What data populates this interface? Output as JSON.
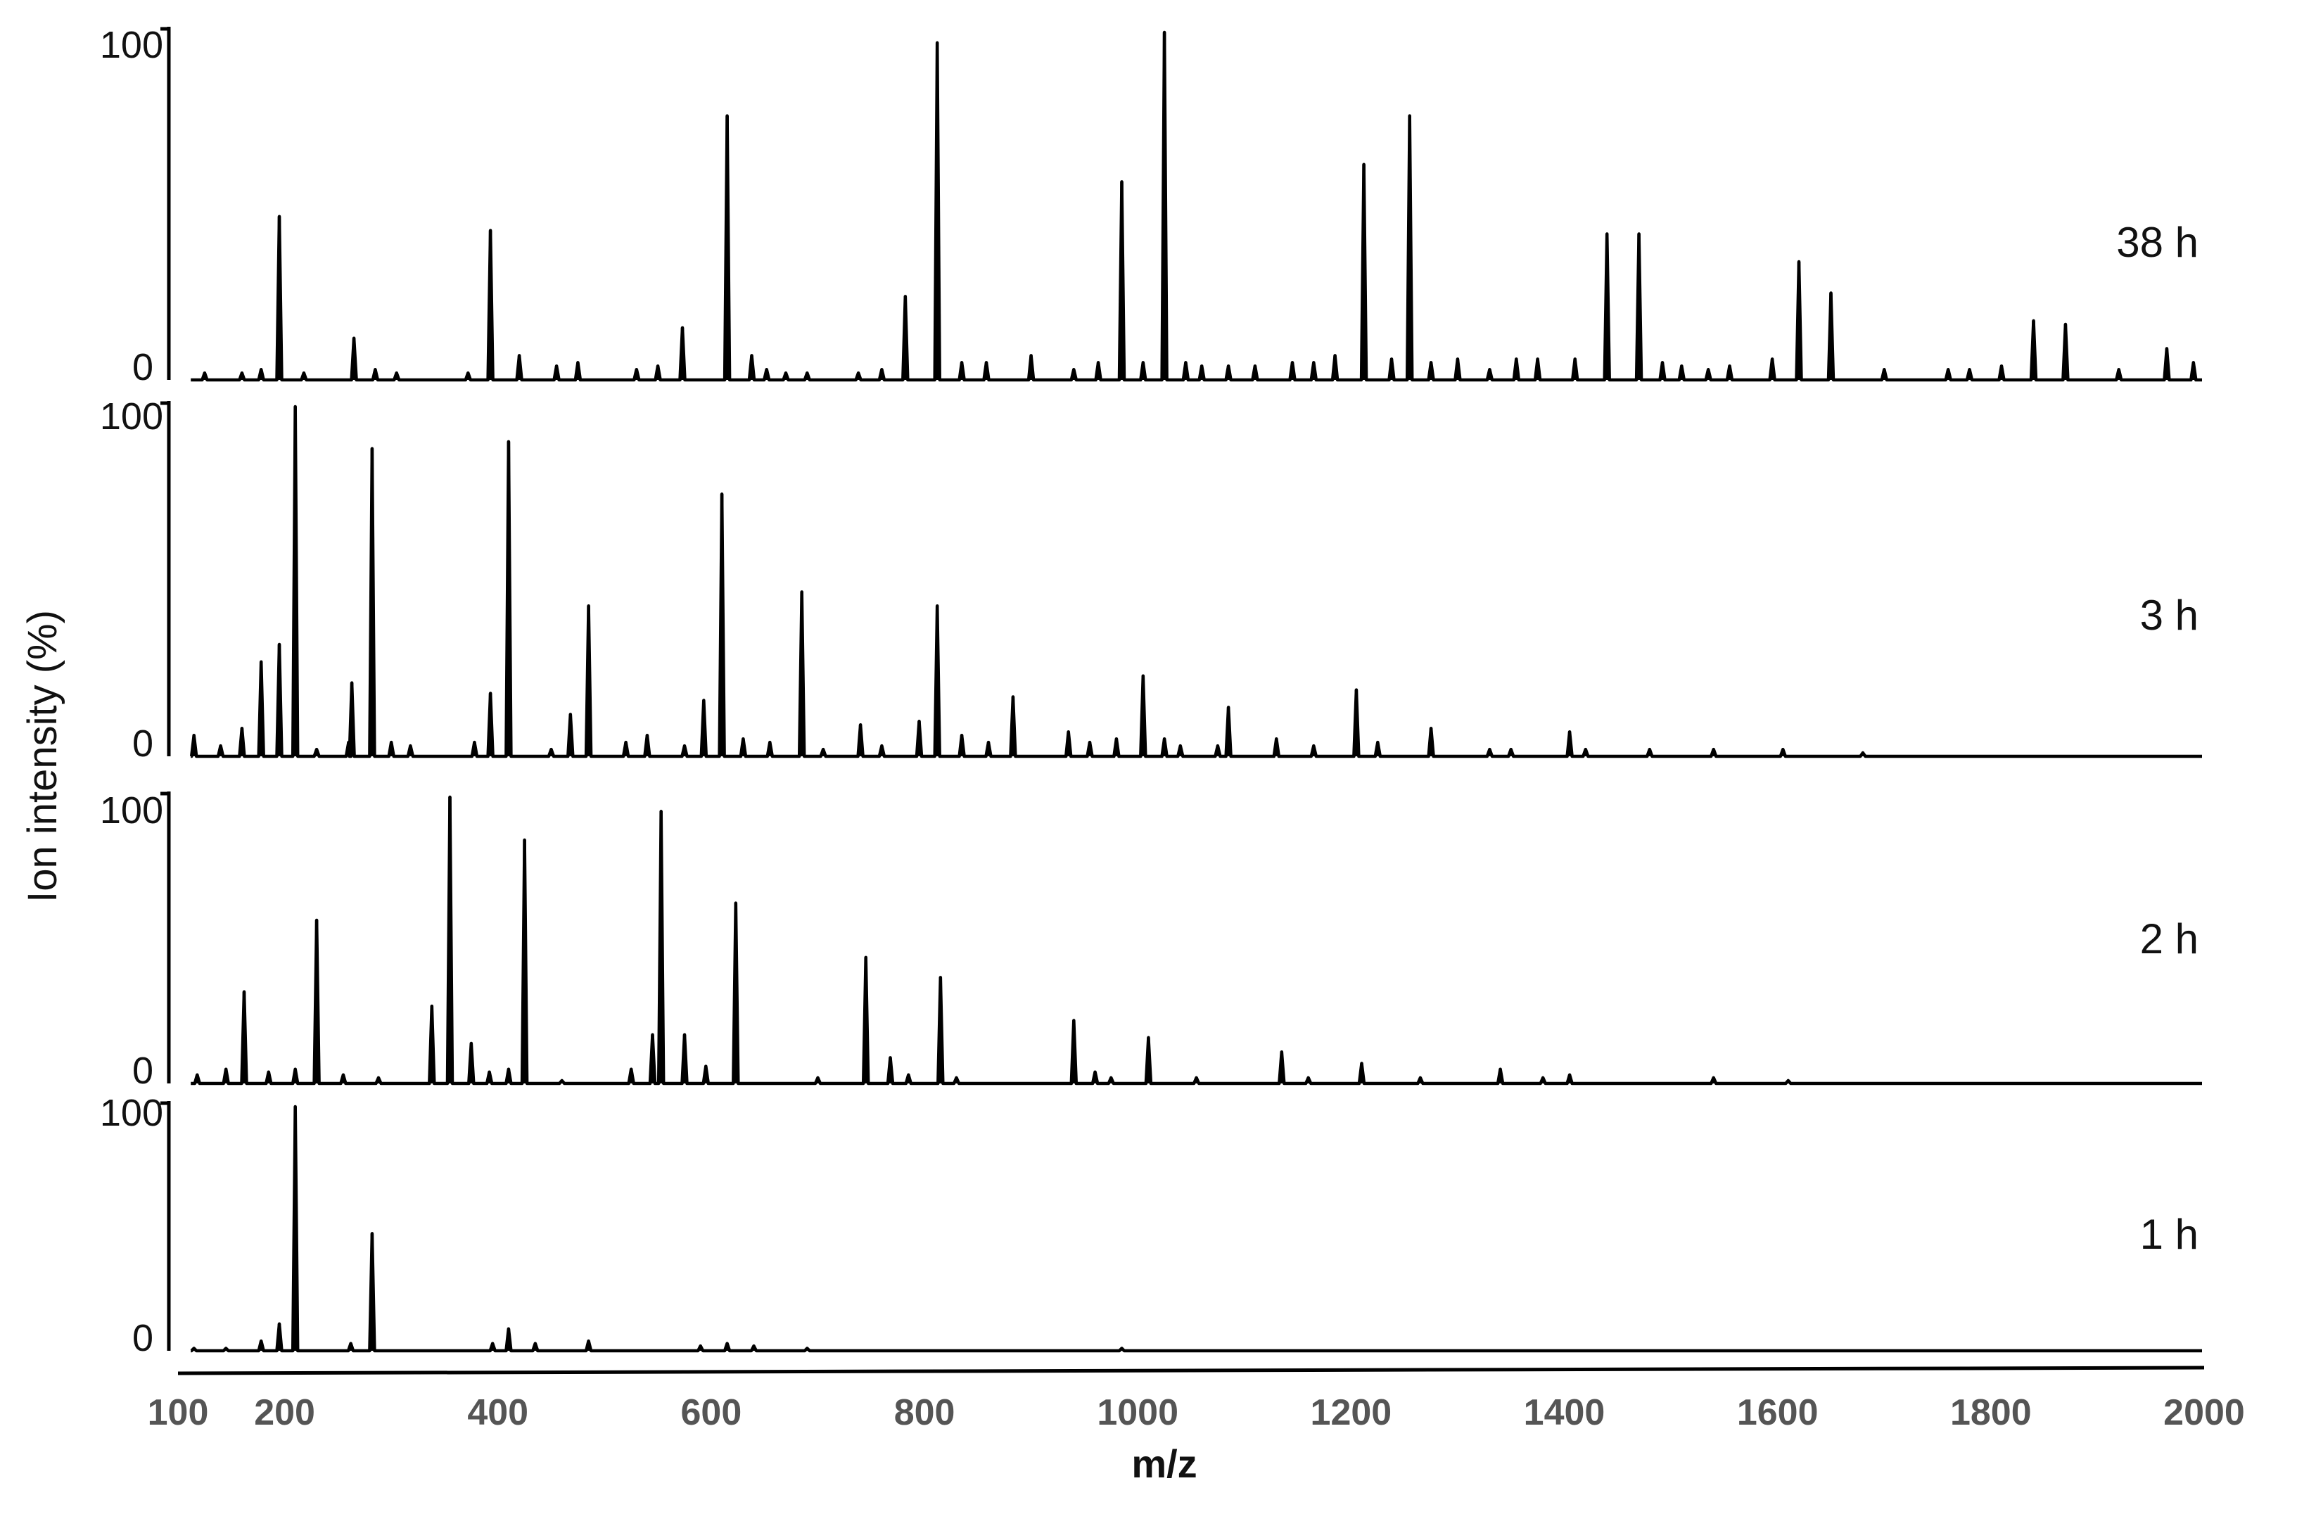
{
  "chart_data": {
    "type": "line",
    "subtype": "stacked mass spectra",
    "xlabel": "m/z",
    "ylabel": "Ion intensity (%)",
    "xlim": [
      100,
      2000
    ],
    "ylim": [
      0,
      100
    ],
    "xticks": [
      100,
      200,
      400,
      600,
      800,
      1000,
      1200,
      1400,
      1600,
      1800,
      2000
    ],
    "yticks": [
      0,
      100
    ],
    "line_color": "#000000",
    "panels": [
      {
        "label": "38 h",
        "peaks": [
          {
            "x": 125,
            "y": 2
          },
          {
            "x": 160,
            "y": 2
          },
          {
            "x": 178,
            "y": 3
          },
          {
            "x": 195,
            "y": 47
          },
          {
            "x": 218,
            "y": 2
          },
          {
            "x": 265,
            "y": 12
          },
          {
            "x": 285,
            "y": 3
          },
          {
            "x": 305,
            "y": 2
          },
          {
            "x": 372,
            "y": 2
          },
          {
            "x": 393,
            "y": 43
          },
          {
            "x": 420,
            "y": 7
          },
          {
            "x": 455,
            "y": 4
          },
          {
            "x": 475,
            "y": 5
          },
          {
            "x": 530,
            "y": 3
          },
          {
            "x": 550,
            "y": 4
          },
          {
            "x": 573,
            "y": 15
          },
          {
            "x": 615,
            "y": 76
          },
          {
            "x": 638,
            "y": 7
          },
          {
            "x": 652,
            "y": 3
          },
          {
            "x": 670,
            "y": 2
          },
          {
            "x": 690,
            "y": 2
          },
          {
            "x": 738,
            "y": 2
          },
          {
            "x": 760,
            "y": 3
          },
          {
            "x": 782,
            "y": 24
          },
          {
            "x": 812,
            "y": 97
          },
          {
            "x": 835,
            "y": 5
          },
          {
            "x": 858,
            "y": 5
          },
          {
            "x": 900,
            "y": 7
          },
          {
            "x": 940,
            "y": 3
          },
          {
            "x": 963,
            "y": 5
          },
          {
            "x": 985,
            "y": 57
          },
          {
            "x": 1005,
            "y": 5
          },
          {
            "x": 1025,
            "y": 100
          },
          {
            "x": 1045,
            "y": 5
          },
          {
            "x": 1060,
            "y": 4
          },
          {
            "x": 1085,
            "y": 4
          },
          {
            "x": 1110,
            "y": 4
          },
          {
            "x": 1145,
            "y": 5
          },
          {
            "x": 1165,
            "y": 5
          },
          {
            "x": 1185,
            "y": 7
          },
          {
            "x": 1212,
            "y": 62
          },
          {
            "x": 1238,
            "y": 6
          },
          {
            "x": 1255,
            "y": 76
          },
          {
            "x": 1275,
            "y": 5
          },
          {
            "x": 1300,
            "y": 6
          },
          {
            "x": 1330,
            "y": 3
          },
          {
            "x": 1355,
            "y": 6
          },
          {
            "x": 1375,
            "y": 6
          },
          {
            "x": 1410,
            "y": 6
          },
          {
            "x": 1440,
            "y": 42
          },
          {
            "x": 1470,
            "y": 42
          },
          {
            "x": 1492,
            "y": 5
          },
          {
            "x": 1510,
            "y": 4
          },
          {
            "x": 1535,
            "y": 3
          },
          {
            "x": 1555,
            "y": 4
          },
          {
            "x": 1595,
            "y": 6
          },
          {
            "x": 1620,
            "y": 34
          },
          {
            "x": 1650,
            "y": 25
          },
          {
            "x": 1700,
            "y": 3
          },
          {
            "x": 1760,
            "y": 3
          },
          {
            "x": 1780,
            "y": 3
          },
          {
            "x": 1810,
            "y": 4
          },
          {
            "x": 1840,
            "y": 17
          },
          {
            "x": 1870,
            "y": 16
          },
          {
            "x": 1920,
            "y": 3
          },
          {
            "x": 1965,
            "y": 9
          },
          {
            "x": 1990,
            "y": 5
          }
        ]
      },
      {
        "label": "3 h",
        "peaks": [
          {
            "x": 115,
            "y": 6
          },
          {
            "x": 140,
            "y": 3
          },
          {
            "x": 160,
            "y": 8
          },
          {
            "x": 178,
            "y": 27
          },
          {
            "x": 195,
            "y": 32
          },
          {
            "x": 210,
            "y": 100
          },
          {
            "x": 230,
            "y": 2
          },
          {
            "x": 260,
            "y": 4
          },
          {
            "x": 263,
            "y": 21
          },
          {
            "x": 282,
            "y": 88
          },
          {
            "x": 300,
            "y": 4
          },
          {
            "x": 318,
            "y": 3
          },
          {
            "x": 378,
            "y": 4
          },
          {
            "x": 393,
            "y": 18
          },
          {
            "x": 410,
            "y": 90
          },
          {
            "x": 450,
            "y": 2
          },
          {
            "x": 468,
            "y": 12
          },
          {
            "x": 485,
            "y": 43
          },
          {
            "x": 520,
            "y": 4
          },
          {
            "x": 540,
            "y": 6
          },
          {
            "x": 575,
            "y": 3
          },
          {
            "x": 593,
            "y": 16
          },
          {
            "x": 610,
            "y": 75
          },
          {
            "x": 630,
            "y": 5
          },
          {
            "x": 655,
            "y": 4
          },
          {
            "x": 685,
            "y": 47
          },
          {
            "x": 705,
            "y": 2
          },
          {
            "x": 740,
            "y": 9
          },
          {
            "x": 760,
            "y": 3
          },
          {
            "x": 795,
            "y": 10
          },
          {
            "x": 812,
            "y": 43
          },
          {
            "x": 835,
            "y": 6
          },
          {
            "x": 860,
            "y": 4
          },
          {
            "x": 883,
            "y": 17
          },
          {
            "x": 935,
            "y": 7
          },
          {
            "x": 955,
            "y": 4
          },
          {
            "x": 980,
            "y": 5
          },
          {
            "x": 1005,
            "y": 23
          },
          {
            "x": 1025,
            "y": 5
          },
          {
            "x": 1040,
            "y": 3
          },
          {
            "x": 1075,
            "y": 3
          },
          {
            "x": 1085,
            "y": 14
          },
          {
            "x": 1130,
            "y": 5
          },
          {
            "x": 1165,
            "y": 3
          },
          {
            "x": 1205,
            "y": 19
          },
          {
            "x": 1225,
            "y": 4
          },
          {
            "x": 1275,
            "y": 8
          },
          {
            "x": 1330,
            "y": 2
          },
          {
            "x": 1350,
            "y": 2
          },
          {
            "x": 1405,
            "y": 7
          },
          {
            "x": 1420,
            "y": 2
          },
          {
            "x": 1480,
            "y": 2
          },
          {
            "x": 1540,
            "y": 2
          },
          {
            "x": 1605,
            "y": 2
          },
          {
            "x": 1680,
            "y": 1
          }
        ]
      },
      {
        "label": "2 h",
        "peaks": [
          {
            "x": 118,
            "y": 3
          },
          {
            "x": 145,
            "y": 5
          },
          {
            "x": 162,
            "y": 32
          },
          {
            "x": 185,
            "y": 4
          },
          {
            "x": 210,
            "y": 5
          },
          {
            "x": 230,
            "y": 57
          },
          {
            "x": 255,
            "y": 3
          },
          {
            "x": 288,
            "y": 2
          },
          {
            "x": 338,
            "y": 27
          },
          {
            "x": 355,
            "y": 100
          },
          {
            "x": 375,
            "y": 14
          },
          {
            "x": 392,
            "y": 4
          },
          {
            "x": 410,
            "y": 5
          },
          {
            "x": 425,
            "y": 85
          },
          {
            "x": 460,
            "y": 1
          },
          {
            "x": 525,
            "y": 5
          },
          {
            "x": 545,
            "y": 17
          },
          {
            "x": 553,
            "y": 95
          },
          {
            "x": 575,
            "y": 17
          },
          {
            "x": 595,
            "y": 6
          },
          {
            "x": 623,
            "y": 63
          },
          {
            "x": 700,
            "y": 2
          },
          {
            "x": 745,
            "y": 44
          },
          {
            "x": 768,
            "y": 9
          },
          {
            "x": 785,
            "y": 3
          },
          {
            "x": 815,
            "y": 37
          },
          {
            "x": 830,
            "y": 2
          },
          {
            "x": 940,
            "y": 22
          },
          {
            "x": 960,
            "y": 4
          },
          {
            "x": 975,
            "y": 2
          },
          {
            "x": 1010,
            "y": 16
          },
          {
            "x": 1055,
            "y": 2
          },
          {
            "x": 1135,
            "y": 11
          },
          {
            "x": 1160,
            "y": 2
          },
          {
            "x": 1210,
            "y": 7
          },
          {
            "x": 1265,
            "y": 2
          },
          {
            "x": 1340,
            "y": 5
          },
          {
            "x": 1380,
            "y": 2
          },
          {
            "x": 1405,
            "y": 3
          },
          {
            "x": 1540,
            "y": 2
          },
          {
            "x": 1610,
            "y": 1
          }
        ]
      },
      {
        "label": "1 h",
        "peaks": [
          {
            "x": 115,
            "y": 1
          },
          {
            "x": 145,
            "y": 1
          },
          {
            "x": 178,
            "y": 4
          },
          {
            "x": 195,
            "y": 11
          },
          {
            "x": 210,
            "y": 100
          },
          {
            "x": 262,
            "y": 3
          },
          {
            "x": 282,
            "y": 48
          },
          {
            "x": 395,
            "y": 3
          },
          {
            "x": 410,
            "y": 9
          },
          {
            "x": 435,
            "y": 3
          },
          {
            "x": 485,
            "y": 4
          },
          {
            "x": 590,
            "y": 2
          },
          {
            "x": 615,
            "y": 3
          },
          {
            "x": 640,
            "y": 2
          },
          {
            "x": 690,
            "y": 1
          },
          {
            "x": 985,
            "y": 1
          }
        ]
      }
    ]
  }
}
